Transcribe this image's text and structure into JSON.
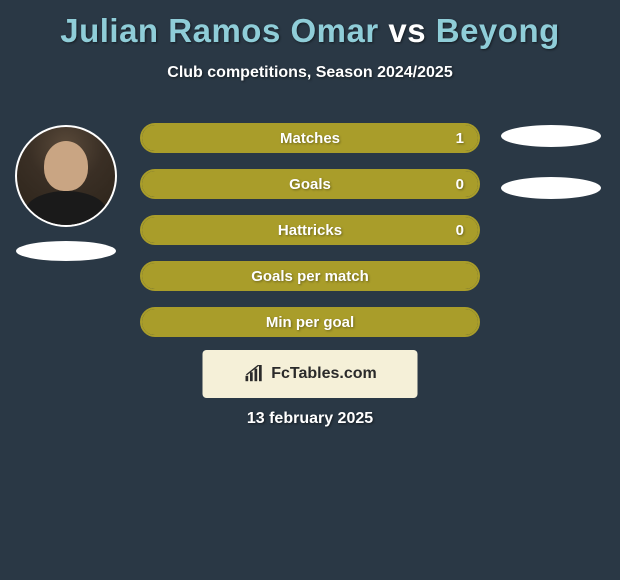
{
  "title": {
    "player1": "Julian Ramos Omar",
    "vs": "vs",
    "player2": "Beyong"
  },
  "subtitle": "Club competitions, Season 2024/2025",
  "colors": {
    "bar_border": "#a99d2a",
    "bar_fill": "#a99d2a",
    "background": "#2a3845",
    "attribution_bg": "#f5f0d8"
  },
  "stats": [
    {
      "label": "Matches",
      "value": "1",
      "fill_pct": 100
    },
    {
      "label": "Goals",
      "value": "0",
      "fill_pct": 100
    },
    {
      "label": "Hattricks",
      "value": "0",
      "fill_pct": 100
    },
    {
      "label": "Goals per match",
      "value": "",
      "fill_pct": 100
    },
    {
      "label": "Min per goal",
      "value": "",
      "fill_pct": 100
    }
  ],
  "attribution": "FcTables.com",
  "date": "13 february 2025"
}
